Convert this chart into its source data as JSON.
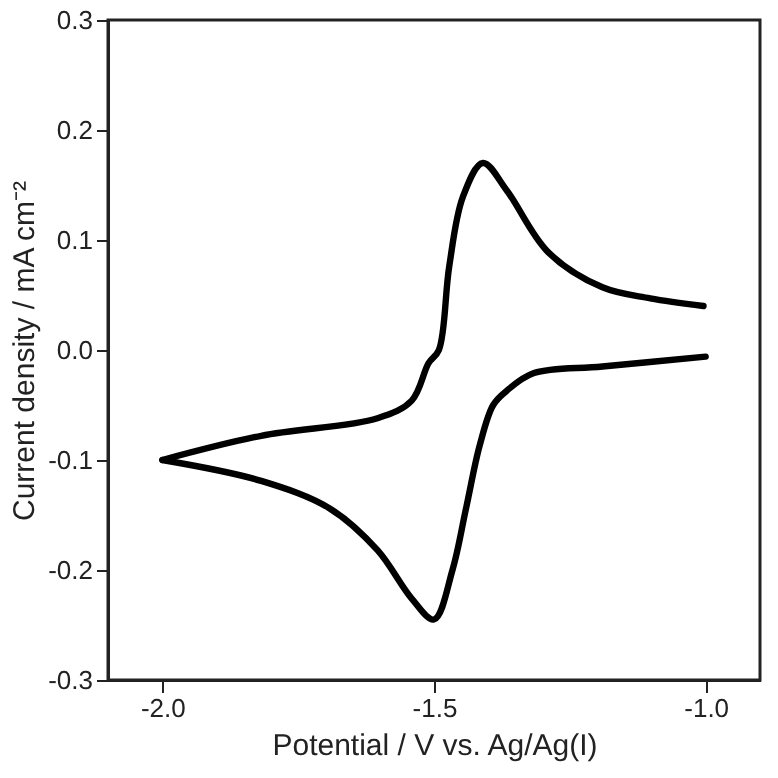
{
  "chart_data": {
    "type": "line",
    "xlabel": "Potential / V vs. Ag/Ag(I)",
    "ylabel": "Current density / mA cm⁻²",
    "xlim": [
      -2.1,
      -0.9
    ],
    "ylim": [
      -0.3,
      0.3
    ],
    "xticks": [
      {
        "value": -2.0,
        "label": "-2.0"
      },
      {
        "value": -1.5,
        "label": "-1.5"
      },
      {
        "value": -1.0,
        "label": "-1.0"
      }
    ],
    "yticks": [
      {
        "value": -0.3,
        "label": "-0.3"
      },
      {
        "value": -0.2,
        "label": "-0.2"
      },
      {
        "value": -0.1,
        "label": "-0.1"
      },
      {
        "value": 0.0,
        "label": "0.0"
      },
      {
        "value": 0.1,
        "label": "0.1"
      },
      {
        "value": 0.2,
        "label": "0.2"
      },
      {
        "value": 0.3,
        "label": "0.3"
      }
    ],
    "grid": false,
    "marker": "none",
    "line_style": "solid",
    "series": [
      {
        "color": "#000000",
        "x": [
          -2.0,
          -1.818,
          -1.604,
          -1.541,
          -1.51,
          -1.491,
          -1.472,
          -1.447,
          -1.41,
          -1.366,
          -1.29,
          -1.19,
          -1.102,
          -1.004
        ],
        "values": [
          -0.1,
          -0.078,
          -0.062,
          -0.046,
          -0.012,
          0.0,
          0.076,
          0.139,
          0.17,
          0.145,
          0.089,
          0.057,
          0.047,
          0.04
        ]
      },
      {
        "color": "#000000",
        "x": [
          -1.0,
          -1.19,
          -1.316,
          -1.366,
          -1.391,
          -1.416,
          -1.441,
          -1.466,
          -1.5,
          -1.541,
          -1.604,
          -1.692,
          -1.818,
          -2.0
        ],
        "values": [
          -0.006,
          -0.015,
          -0.021,
          -0.037,
          -0.05,
          -0.087,
          -0.144,
          -0.2,
          -0.245,
          -0.226,
          -0.182,
          -0.144,
          -0.119,
          -0.1
        ]
      }
    ]
  }
}
